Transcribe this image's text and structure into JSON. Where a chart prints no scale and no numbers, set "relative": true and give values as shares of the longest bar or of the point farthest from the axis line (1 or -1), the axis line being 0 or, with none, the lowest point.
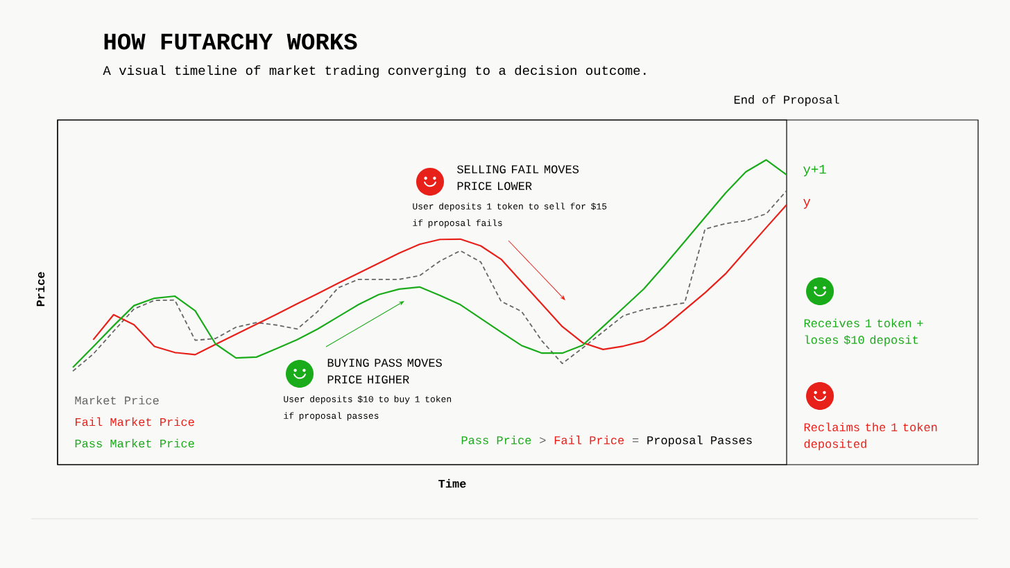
{
  "chart_data": {
    "type": "line",
    "title": "HOW FUTARCHY WORKS",
    "subtitle": "A visual timeline of market trading converging to a decision outcome.",
    "xlabel": "Time",
    "ylabel": "Price",
    "relative": true,
    "marker": "none",
    "categories": [
      null,
      null,
      null,
      null,
      null,
      null,
      null,
      null,
      null,
      null,
      null,
      null,
      null,
      null,
      null,
      null,
      null,
      null,
      null,
      null,
      null,
      null,
      null,
      null,
      null,
      null,
      null,
      null,
      null,
      null,
      null,
      null,
      null,
      null,
      null,
      null
    ],
    "series": [
      {
        "name": "Market Price",
        "color": "#666666",
        "line_style": "dashed",
        "values": [
          0.307,
          0.363,
          0.438,
          0.511,
          0.539,
          0.54,
          0.408,
          0.414,
          0.451,
          0.466,
          0.458,
          0.445,
          0.502,
          0.58,
          0.608,
          0.608,
          0.608,
          0.62,
          0.668,
          0.702,
          0.665,
          0.536,
          0.503,
          0.406,
          0.332,
          0.383,
          0.436,
          0.489,
          0.509,
          0.52,
          0.531,
          0.773,
          0.791,
          0.801,
          0.823,
          0.899
        ]
      },
      {
        "name": "Fail Market Price",
        "color": "#e8201a",
        "line_style": "solid",
        "values": [
          null,
          0.41,
          0.492,
          0.459,
          0.388,
          0.368,
          0.361,
          0.395,
          0.428,
          0.461,
          0.494,
          0.528,
          0.561,
          0.595,
          0.628,
          0.661,
          0.694,
          0.723,
          0.739,
          0.74,
          0.718,
          0.674,
          0.6,
          0.527,
          0.453,
          0.4,
          0.378,
          0.389,
          0.406,
          0.452,
          0.508,
          0.564,
          0.626,
          0.702,
          0.778,
          0.853
        ]
      },
      {
        "name": "Pass Market Price",
        "color": "#1aab1a",
        "line_style": "solid",
        "values": [
          0.319,
          0.387,
          0.456,
          0.522,
          0.546,
          0.553,
          0.505,
          0.396,
          0.35,
          0.353,
          0.381,
          0.41,
          0.445,
          0.485,
          0.525,
          0.558,
          0.576,
          0.583,
          0.555,
          0.525,
          0.48,
          0.435,
          0.391,
          0.366,
          0.366,
          0.392,
          0.453,
          0.515,
          0.577,
          0.653,
          0.732,
          0.812,
          0.891,
          0.961,
          1.0,
          0.951
        ]
      }
    ],
    "annotations": [
      "SELLING FAIL MOVES PRICE LOWER",
      "User deposits 1 token to sell for $15 if proposal fails",
      "BUYING PASS MOVES PRICE HIGHER",
      "User deposits $10 to buy 1 token if proposal passes",
      "y+1",
      "y",
      "Receives 1 token + loses $10 deposit",
      "Reclaims the 1 token deposited",
      "End of Proposal",
      "Pass Price",
      ">",
      "Fail Price",
      "=",
      "Proposal Passes"
    ]
  }
}
